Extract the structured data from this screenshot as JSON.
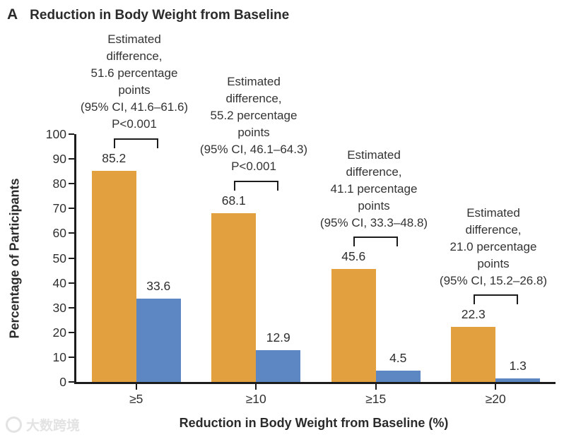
{
  "header": {
    "panel_label": "A",
    "title": "Reduction in Body Weight from Baseline"
  },
  "chart_data": {
    "type": "bar",
    "title": "Reduction in Body Weight from Baseline",
    "xlabel": "Reduction in Body Weight from Baseline (%)",
    "ylabel": "Percentage of Participants",
    "ylim": [
      0,
      100
    ],
    "yticks": [
      0,
      10,
      20,
      30,
      40,
      50,
      60,
      70,
      80,
      90,
      100
    ],
    "categories": [
      "≥5",
      "≥10",
      "≥15",
      "≥20"
    ],
    "series": [
      {
        "color": "#E2A03F",
        "values": [
          85.2,
          68.1,
          45.6,
          22.3
        ]
      },
      {
        "color": "#5C87C2",
        "values": [
          33.6,
          12.9,
          4.5,
          1.3
        ]
      }
    ],
    "annotations": [
      {
        "text": "Estimated\ndifference,\n51.6 percentage\npoints\n(95% CI, 41.6–61.6)\nP<0.001"
      },
      {
        "text": "Estimated\ndifference,\n55.2 percentage\npoints\n(95% CI, 46.1–64.3)\nP<0.001"
      },
      {
        "text": "Estimated\ndifference,\n41.1 percentage\npoints\n(95% CI, 33.3–48.8)"
      },
      {
        "text": "Estimated\ndifference,\n21.0 percentage\npoints\n(95% CI, 15.2–26.8)"
      }
    ],
    "legend": "none",
    "grid": "off"
  },
  "watermark": {
    "text": "大数跨境"
  }
}
